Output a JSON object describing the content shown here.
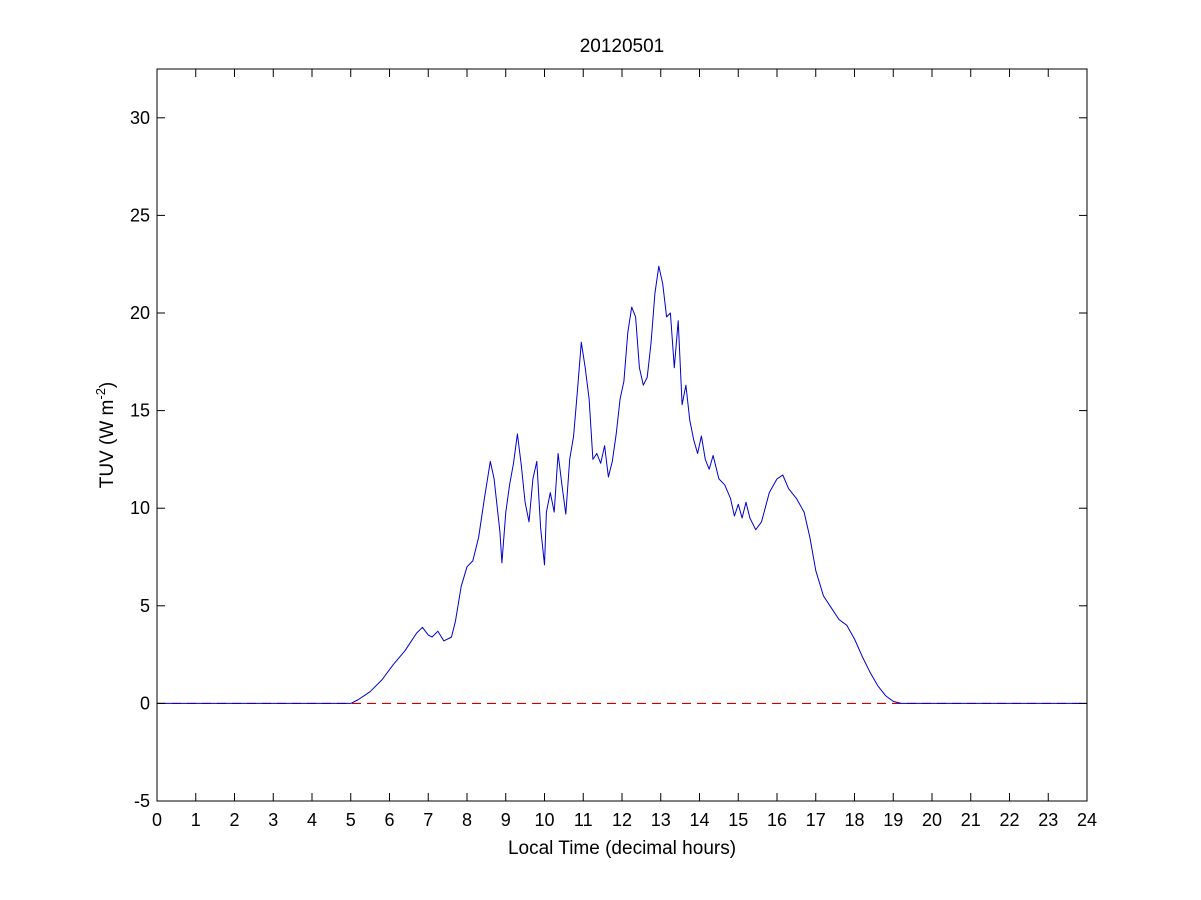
{
  "chart_data": {
    "type": "line",
    "title": "20120501",
    "xlabel": "Local Time (decimal hours)",
    "ylabel": {
      "main": "TUV (W m",
      "sup": "-2",
      "close": ")"
    },
    "xlim": [
      0,
      24
    ],
    "ylim": [
      -5,
      32.5
    ],
    "xticks": [
      0,
      1,
      2,
      3,
      4,
      5,
      6,
      7,
      8,
      9,
      10,
      11,
      12,
      13,
      14,
      15,
      16,
      17,
      18,
      19,
      20,
      21,
      22,
      23,
      24
    ],
    "yticks": [
      -5,
      0,
      5,
      10,
      15,
      20,
      25,
      30
    ],
    "grid": false,
    "colors": {
      "series": "#0000cc",
      "reference": "#cc0000",
      "axes": "#000000"
    },
    "series": [
      {
        "style": "solid",
        "x": [
          0,
          5.0,
          5.2,
          5.5,
          5.8,
          6.1,
          6.4,
          6.7,
          6.85,
          7.0,
          7.1,
          7.25,
          7.4,
          7.6,
          7.7,
          7.85,
          8.0,
          8.15,
          8.3,
          8.45,
          8.6,
          8.7,
          8.85,
          8.9,
          9.0,
          9.1,
          9.2,
          9.3,
          9.4,
          9.5,
          9.6,
          9.7,
          9.8,
          9.9,
          10.0,
          10.05,
          10.15,
          10.25,
          10.35,
          10.45,
          10.55,
          10.65,
          10.75,
          10.85,
          10.95,
          11.05,
          11.15,
          11.25,
          11.35,
          11.45,
          11.55,
          11.65,
          11.75,
          11.85,
          11.95,
          12.05,
          12.15,
          12.25,
          12.35,
          12.45,
          12.55,
          12.65,
          12.75,
          12.85,
          12.95,
          13.05,
          13.15,
          13.25,
          13.35,
          13.45,
          13.55,
          13.65,
          13.75,
          13.85,
          13.95,
          14.05,
          14.15,
          14.25,
          14.35,
          14.5,
          14.65,
          14.8,
          14.9,
          15.0,
          15.1,
          15.2,
          15.3,
          15.45,
          15.6,
          15.8,
          16.0,
          16.15,
          16.3,
          16.5,
          16.7,
          16.85,
          17.0,
          17.2,
          17.4,
          17.6,
          17.8,
          18.0,
          18.2,
          18.4,
          18.6,
          18.8,
          19.0,
          19.2,
          19.4,
          19.6,
          24
        ],
        "y": [
          0,
          0,
          0.2,
          0.6,
          1.2,
          2.0,
          2.7,
          3.6,
          3.9,
          3.5,
          3.4,
          3.7,
          3.2,
          3.4,
          4.2,
          6.0,
          7.0,
          7.3,
          8.5,
          10.5,
          12.4,
          11.5,
          8.8,
          7.2,
          9.8,
          11.2,
          12.3,
          13.8,
          12.2,
          10.3,
          9.3,
          11.5,
          12.4,
          9.0,
          7.1,
          9.8,
          10.8,
          9.8,
          12.8,
          11.2,
          9.7,
          12.5,
          13.7,
          16.0,
          18.5,
          17.2,
          15.6,
          12.5,
          12.8,
          12.3,
          13.2,
          11.6,
          12.4,
          13.8,
          15.6,
          16.5,
          19.0,
          20.3,
          19.8,
          17.2,
          16.3,
          16.7,
          18.5,
          21.0,
          22.4,
          21.5,
          19.8,
          20.0,
          17.2,
          19.6,
          15.3,
          16.3,
          14.5,
          13.5,
          12.8,
          13.7,
          12.5,
          12.0,
          12.7,
          11.5,
          11.2,
          10.5,
          9.6,
          10.2,
          9.5,
          10.3,
          9.5,
          8.9,
          9.3,
          10.8,
          11.5,
          11.7,
          11.0,
          10.5,
          9.8,
          8.5,
          6.8,
          5.5,
          4.9,
          4.3,
          4.0,
          3.3,
          2.4,
          1.6,
          0.9,
          0.4,
          0.1,
          0,
          0,
          0,
          0
        ]
      },
      {
        "style": "dashed",
        "x": [
          0,
          24
        ],
        "y": [
          0,
          0
        ]
      }
    ]
  }
}
